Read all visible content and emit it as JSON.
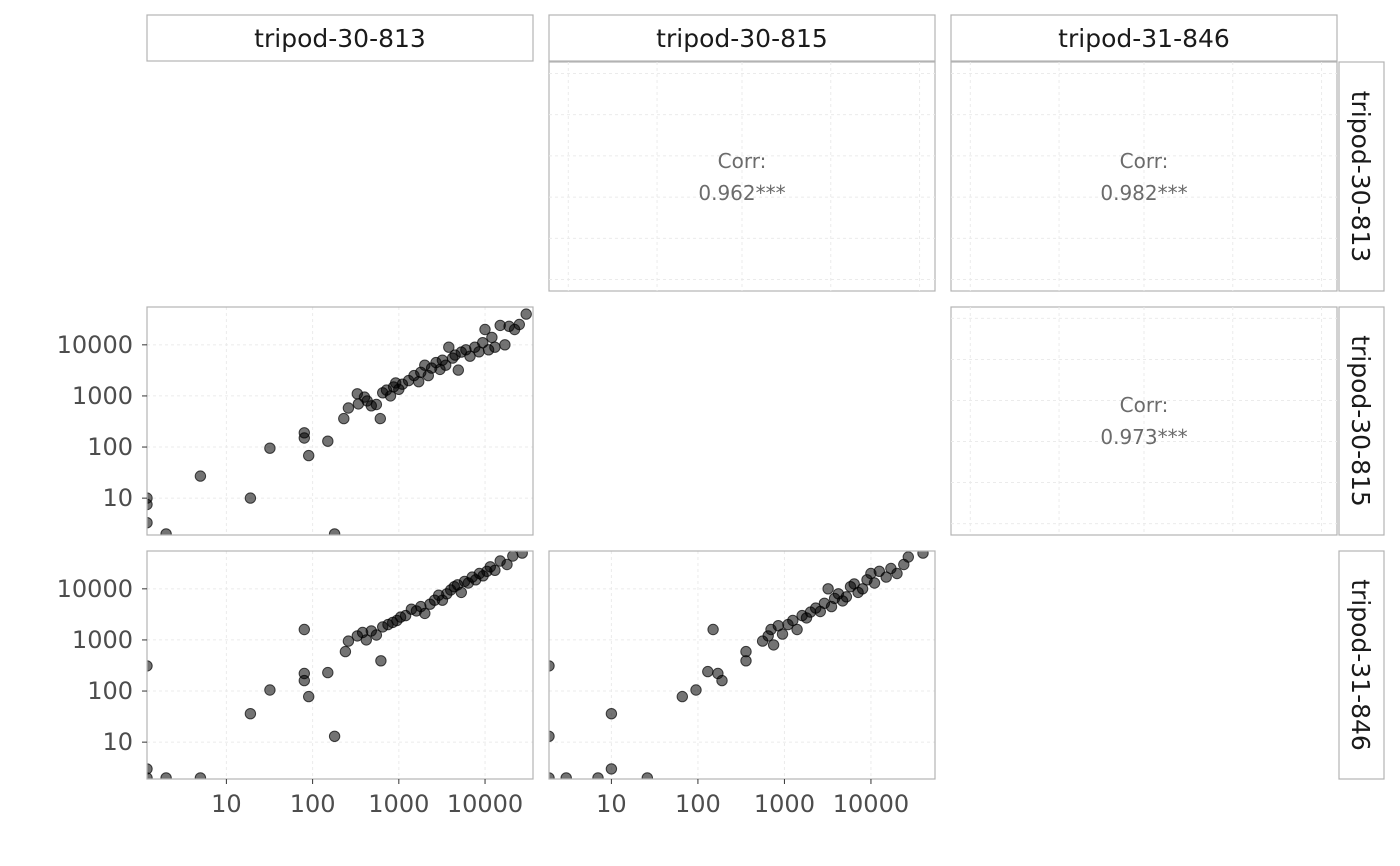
{
  "variables": [
    "tripod-30-813",
    "tripod-30-815",
    "tripod-31-846"
  ],
  "tick_labels": [
    "10",
    "100",
    "1000",
    "10000"
  ],
  "colors": {
    "point": "#000000",
    "panel_border": "#b3b3b3",
    "grid": "#ebebeb",
    "corr_text": "#6b6b6b"
  },
  "chart_data": [
    {
      "type": "text",
      "row": "tripod-30-813",
      "col": "tripod-30-815",
      "label": "Corr:",
      "value": "0.962***"
    },
    {
      "type": "text",
      "row": "tripod-30-813",
      "col": "tripod-31-846",
      "label": "Corr:",
      "value": "0.982***"
    },
    {
      "type": "text",
      "row": "tripod-30-815",
      "col": "tripod-31-846",
      "label": "Corr:",
      "value": "0.973***"
    },
    {
      "type": "scatter",
      "row": "tripod-30-815",
      "col": "tripod-30-813",
      "xscale": "log",
      "yscale": "log",
      "xlim": [
        1.2,
        36000
      ],
      "ylim": [
        1.9,
        55000
      ],
      "points": [
        [
          1.2,
          10
        ],
        [
          1.2,
          7.5
        ],
        [
          1.2,
          3.3
        ],
        [
          2,
          2
        ],
        [
          5,
          27
        ],
        [
          19,
          10
        ],
        [
          32,
          95
        ],
        [
          80,
          190
        ],
        [
          80,
          150
        ],
        [
          90,
          68
        ],
        [
          150,
          130
        ],
        [
          180,
          2
        ],
        [
          230,
          360
        ],
        [
          260,
          580
        ],
        [
          330,
          1100
        ],
        [
          340,
          700
        ],
        [
          400,
          950
        ],
        [
          430,
          800
        ],
        [
          480,
          640
        ],
        [
          550,
          680
        ],
        [
          610,
          360
        ],
        [
          650,
          1150
        ],
        [
          720,
          1300
        ],
        [
          800,
          1000
        ],
        [
          870,
          1500
        ],
        [
          920,
          1800
        ],
        [
          1000,
          1350
        ],
        [
          1100,
          1700
        ],
        [
          1300,
          2000
        ],
        [
          1500,
          2500
        ],
        [
          1700,
          1900
        ],
        [
          1800,
          2900
        ],
        [
          2000,
          4000
        ],
        [
          2200,
          2500
        ],
        [
          2400,
          3500
        ],
        [
          2700,
          4500
        ],
        [
          3000,
          3300
        ],
        [
          3200,
          5000
        ],
        [
          3500,
          4000
        ],
        [
          3800,
          9000
        ],
        [
          4200,
          5500
        ],
        [
          4500,
          6300
        ],
        [
          4900,
          3200
        ],
        [
          5300,
          7200
        ],
        [
          6000,
          8000
        ],
        [
          6700,
          6000
        ],
        [
          7600,
          9000
        ],
        [
          8500,
          7300
        ],
        [
          9400,
          11000
        ],
        [
          10000,
          20000
        ],
        [
          11000,
          8000
        ],
        [
          12000,
          14000
        ],
        [
          13000,
          9000
        ],
        [
          15000,
          24000
        ],
        [
          17000,
          10000
        ],
        [
          19000,
          23000
        ],
        [
          22000,
          20000
        ],
        [
          25000,
          25000
        ],
        [
          30000,
          40000
        ]
      ]
    },
    {
      "type": "scatter",
      "row": "tripod-31-846",
      "col": "tripod-30-813",
      "xscale": "log",
      "yscale": "log",
      "xlim": [
        1.2,
        36000
      ],
      "ylim": [
        1.9,
        55000
      ],
      "points": [
        [
          1.2,
          310
        ],
        [
          1.2,
          3
        ],
        [
          1.2,
          2
        ],
        [
          2,
          2
        ],
        [
          5,
          2
        ],
        [
          19,
          36
        ],
        [
          32,
          105
        ],
        [
          80,
          1600
        ],
        [
          80,
          220
        ],
        [
          80,
          160
        ],
        [
          90,
          78
        ],
        [
          150,
          230
        ],
        [
          180,
          13
        ],
        [
          240,
          590
        ],
        [
          260,
          950
        ],
        [
          330,
          1200
        ],
        [
          380,
          1400
        ],
        [
          420,
          1000
        ],
        [
          480,
          1500
        ],
        [
          550,
          1250
        ],
        [
          620,
          390
        ],
        [
          650,
          1800
        ],
        [
          750,
          2000
        ],
        [
          850,
          2200
        ],
        [
          950,
          2400
        ],
        [
          1050,
          2800
        ],
        [
          1200,
          3000
        ],
        [
          1400,
          4000
        ],
        [
          1600,
          3700
        ],
        [
          1800,
          4500
        ],
        [
          2000,
          3300
        ],
        [
          2300,
          5000
        ],
        [
          2600,
          6000
        ],
        [
          2900,
          7500
        ],
        [
          3200,
          6000
        ],
        [
          3600,
          8000
        ],
        [
          4000,
          9500
        ],
        [
          4400,
          11000
        ],
        [
          4800,
          12000
        ],
        [
          5300,
          8500
        ],
        [
          5800,
          14000
        ],
        [
          6400,
          13000
        ],
        [
          7100,
          17000
        ],
        [
          7800,
          15000
        ],
        [
          8600,
          20000
        ],
        [
          9500,
          18000
        ],
        [
          10500,
          22000
        ],
        [
          11500,
          27000
        ],
        [
          13000,
          23000
        ],
        [
          15000,
          35000
        ],
        [
          18000,
          30000
        ],
        [
          21000,
          44000
        ],
        [
          27000,
          50000
        ]
      ]
    },
    {
      "type": "scatter",
      "row": "tripod-31-846",
      "col": "tripod-30-815",
      "xscale": "log",
      "yscale": "log",
      "xlim": [
        1.9,
        55000
      ],
      "ylim": [
        1.9,
        55000
      ],
      "points": [
        [
          1.9,
          310
        ],
        [
          1.9,
          13
        ],
        [
          1.9,
          2
        ],
        [
          3,
          2
        ],
        [
          7,
          2
        ],
        [
          10,
          36
        ],
        [
          10,
          3
        ],
        [
          26,
          2
        ],
        [
          66,
          78
        ],
        [
          95,
          105
        ],
        [
          130,
          240
        ],
        [
          150,
          1600
        ],
        [
          170,
          220
        ],
        [
          190,
          160
        ],
        [
          360,
          590
        ],
        [
          360,
          390
        ],
        [
          560,
          950
        ],
        [
          650,
          1200
        ],
        [
          700,
          1600
        ],
        [
          750,
          800
        ],
        [
          850,
          1900
        ],
        [
          950,
          1300
        ],
        [
          1100,
          2000
        ],
        [
          1250,
          2400
        ],
        [
          1400,
          1600
        ],
        [
          1600,
          3000
        ],
        [
          1800,
          2700
        ],
        [
          2000,
          3500
        ],
        [
          2300,
          4200
        ],
        [
          2600,
          3600
        ],
        [
          2900,
          5200
        ],
        [
          3200,
          10000
        ],
        [
          3500,
          4500
        ],
        [
          3800,
          6500
        ],
        [
          4200,
          8000
        ],
        [
          4700,
          5800
        ],
        [
          5200,
          7000
        ],
        [
          5800,
          11000
        ],
        [
          6400,
          12500
        ],
        [
          7100,
          8500
        ],
        [
          8000,
          10000
        ],
        [
          9000,
          15000
        ],
        [
          10000,
          20000
        ],
        [
          11000,
          13000
        ],
        [
          12500,
          22000
        ],
        [
          15000,
          17000
        ],
        [
          17000,
          25000
        ],
        [
          20000,
          20000
        ],
        [
          24000,
          30000
        ],
        [
          27000,
          42000
        ],
        [
          40000,
          50000
        ]
      ]
    }
  ]
}
